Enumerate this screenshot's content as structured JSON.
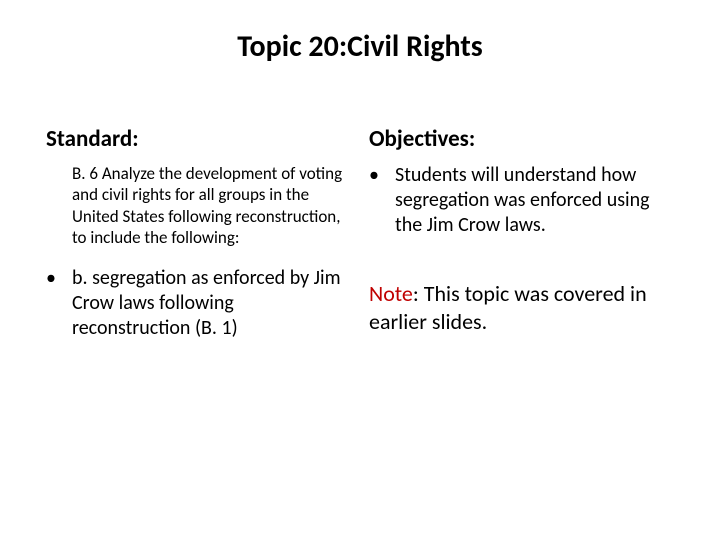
{
  "title": "Topic 20:Civil Rights",
  "left": {
    "heading": "Standard:",
    "standard_text": "B. 6  Analyze the development of voting and civil rights for all groups in the United States following reconstruction, to include the following:",
    "bullet": "b. segregation as enforced by Jim Crow laws following reconstruction (B. 1)"
  },
  "right": {
    "heading": "Objectives:",
    "bullet": "Students will understand how segregation was enforced using the Jim Crow laws.",
    "note_label": "Note",
    "note_rest": ":  This topic was covered in earlier slides."
  },
  "colors": {
    "text": "#000000",
    "accent": "#c00000",
    "background": "#ffffff"
  }
}
